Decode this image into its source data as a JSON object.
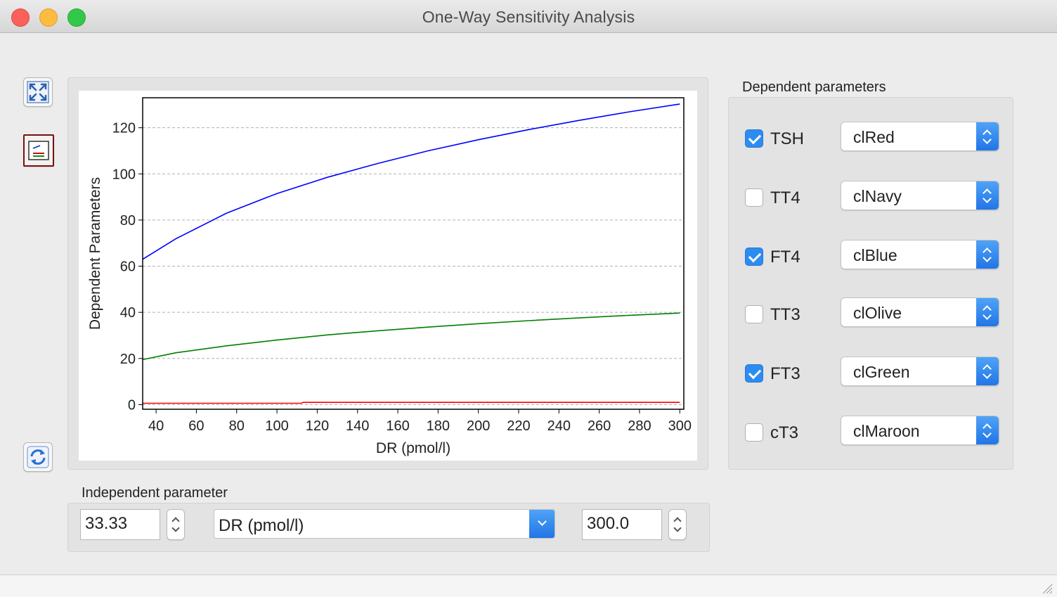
{
  "window": {
    "title": "One-Way Sensitivity Analysis"
  },
  "toolbar": {
    "fullscreen_icon": "expand-arrows-icon",
    "chart_legend_icon": "chart-legend-icon",
    "refresh_icon": "refresh-arrows-icon"
  },
  "chart_data": {
    "type": "line",
    "title": "",
    "xlabel": "DR (pmol/l)",
    "ylabel": "Dependent Parameters",
    "xlim": [
      33.33,
      302
    ],
    "ylim": [
      -2,
      133
    ],
    "xticks": [
      40,
      60,
      80,
      100,
      120,
      140,
      160,
      180,
      200,
      220,
      240,
      260,
      280,
      300
    ],
    "yticks": [
      0,
      20,
      40,
      60,
      80,
      100,
      120
    ],
    "grid": "horizontal dashed",
    "series": [
      {
        "color": "#0000ff",
        "x": [
          33.33,
          50,
          75,
          100,
          125,
          150,
          175,
          200,
          225,
          250,
          275,
          300
        ],
        "y": [
          63,
          72,
          83,
          91.5,
          98.5,
          104.5,
          110,
          114.8,
          119.2,
          123.2,
          126.9,
          130.3
        ]
      },
      {
        "color": "#008000",
        "x": [
          33.33,
          50,
          75,
          100,
          125,
          150,
          175,
          200,
          225,
          250,
          275,
          300
        ],
        "y": [
          19.5,
          22.5,
          25.5,
          28,
          30.2,
          32,
          33.6,
          35.1,
          36.4,
          37.6,
          38.7,
          39.7
        ]
      },
      {
        "color": "#ff0000",
        "x": [
          33.33,
          112,
          113,
          300
        ],
        "y": [
          0.6,
          0.6,
          1.0,
          1.0
        ]
      }
    ]
  },
  "dependent": {
    "title": "Dependent parameters",
    "params": [
      {
        "label": "TSH",
        "checked": true,
        "color": "clRed"
      },
      {
        "label": "TT4",
        "checked": false,
        "color": "clNavy"
      },
      {
        "label": "FT4",
        "checked": true,
        "color": "clBlue"
      },
      {
        "label": "TT3",
        "checked": false,
        "color": "clOlive"
      },
      {
        "label": "FT3",
        "checked": true,
        "color": "clGreen"
      },
      {
        "label": "cT3",
        "checked": false,
        "color": "clMaroon"
      }
    ]
  },
  "independent": {
    "title": "Independent parameter",
    "min_value": "33.33",
    "parameter": "DR (pmol/l)",
    "max_value": "300.0"
  },
  "colors": {
    "accent": "#2d8cf0",
    "selected_border": "#7a1010"
  }
}
